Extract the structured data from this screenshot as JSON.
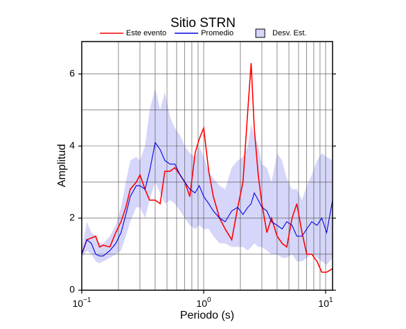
{
  "chart_data": {
    "type": "line",
    "title": "Sitio STRN",
    "x_label": "Periodo (s)",
    "y_label": "Amplitud",
    "xscale": "log",
    "grid": true,
    "xlim": [
      0.1,
      11.4
    ],
    "ylim": [
      0,
      6.9
    ],
    "xticks": [
      {
        "value": 0.1,
        "label": "10",
        "exponent": "−1"
      },
      {
        "value": 1,
        "label": "10",
        "exponent": "0"
      },
      {
        "value": 10,
        "label": "10",
        "exponent": "1"
      }
    ],
    "xgrid": [
      0.2,
      0.3,
      0.4,
      0.5,
      0.6,
      0.7,
      0.8,
      0.9,
      1,
      2,
      3,
      4,
      5,
      6,
      7,
      8,
      9,
      10
    ],
    "yticks": [
      0,
      2,
      4,
      6
    ],
    "ygrid": [
      1,
      2,
      3,
      4,
      5,
      6
    ],
    "x": [
      0.1,
      0.11,
      0.12,
      0.13,
      0.14,
      0.15,
      0.17,
      0.19,
      0.21,
      0.23,
      0.25,
      0.28,
      0.3,
      0.33,
      0.36,
      0.4,
      0.44,
      0.48,
      0.53,
      0.58,
      0.64,
      0.7,
      0.77,
      0.85,
      0.92,
      1.0,
      1.1,
      1.2,
      1.35,
      1.5,
      1.7,
      1.9,
      2.1,
      2.3,
      2.45,
      2.6,
      2.8,
      3.0,
      3.3,
      3.6,
      4.0,
      4.4,
      4.8,
      5.3,
      5.8,
      6.4,
      7.0,
      7.7,
      8.5,
      9.3,
      10.2,
      11.4
    ],
    "band": {
      "name": "Desv. Est.",
      "color": "#d6d6fa",
      "upper": [
        1.1,
        1.9,
        1.6,
        1.5,
        1.3,
        1.3,
        1.5,
        1.8,
        2.3,
        3.0,
        3.6,
        3.7,
        3.6,
        4.0,
        5.0,
        5.6,
        5.0,
        5.5,
        4.8,
        4.5,
        4.3,
        4.0,
        3.8,
        3.7,
        4.0,
        3.7,
        3.3,
        3.1,
        2.9,
        2.8,
        3.4,
        3.6,
        3.7,
        4.0,
        4.6,
        4.3,
        4.0,
        3.5,
        3.4,
        3.0,
        3.8,
        3.6,
        3.1,
        2.8,
        2.8,
        2.5,
        2.9,
        3.2,
        3.6,
        3.8,
        3.7,
        3.6
      ],
      "lower": [
        0.9,
        1.1,
        1.0,
        0.8,
        0.75,
        0.8,
        0.9,
        1.0,
        1.1,
        1.5,
        1.9,
        2.3,
        2.3,
        2.0,
        2.5,
        3.0,
        2.7,
        2.4,
        2.5,
        2.4,
        2.2,
        2.0,
        1.8,
        1.7,
        1.8,
        1.7,
        1.7,
        1.5,
        1.3,
        1.3,
        1.2,
        1.2,
        1.2,
        1.1,
        1.2,
        1.3,
        1.2,
        1.2,
        1.1,
        1.0,
        1.0,
        0.9,
        0.9,
        1.0,
        0.8,
        0.8,
        0.9,
        1.0,
        0.9,
        0.8,
        0.7,
        0.9
      ]
    },
    "series": [
      {
        "name": "Este evento",
        "color": "#ff0000",
        "values": [
          1.0,
          1.4,
          1.45,
          1.5,
          1.2,
          1.25,
          1.2,
          1.6,
          1.9,
          2.3,
          2.8,
          3.0,
          3.2,
          2.8,
          2.5,
          2.5,
          2.4,
          3.3,
          3.3,
          3.4,
          3.2,
          3.0,
          2.6,
          3.8,
          4.2,
          4.5,
          3.3,
          2.6,
          2.0,
          1.7,
          1.4,
          2.3,
          3.0,
          5.0,
          6.3,
          4.5,
          3.2,
          2.4,
          1.6,
          2.0,
          1.5,
          1.3,
          1.2,
          2.0,
          2.4,
          1.6,
          1.0,
          1.0,
          0.8,
          0.5,
          0.5,
          0.6
        ]
      },
      {
        "name": "Promedio",
        "color": "#0000e0",
        "values": [
          1.0,
          1.4,
          1.3,
          1.0,
          0.95,
          0.95,
          1.1,
          1.3,
          1.6,
          2.1,
          2.6,
          2.9,
          2.9,
          2.8,
          3.3,
          4.1,
          3.9,
          3.6,
          3.5,
          3.5,
          3.2,
          3.0,
          2.8,
          2.7,
          2.9,
          2.6,
          2.4,
          2.2,
          2.0,
          1.9,
          2.2,
          2.3,
          2.1,
          2.3,
          2.4,
          2.7,
          2.5,
          2.3,
          2.2,
          1.9,
          1.8,
          1.7,
          1.9,
          1.8,
          1.5,
          1.5,
          1.7,
          1.9,
          1.8,
          2.0,
          1.6,
          2.5
        ]
      }
    ]
  }
}
